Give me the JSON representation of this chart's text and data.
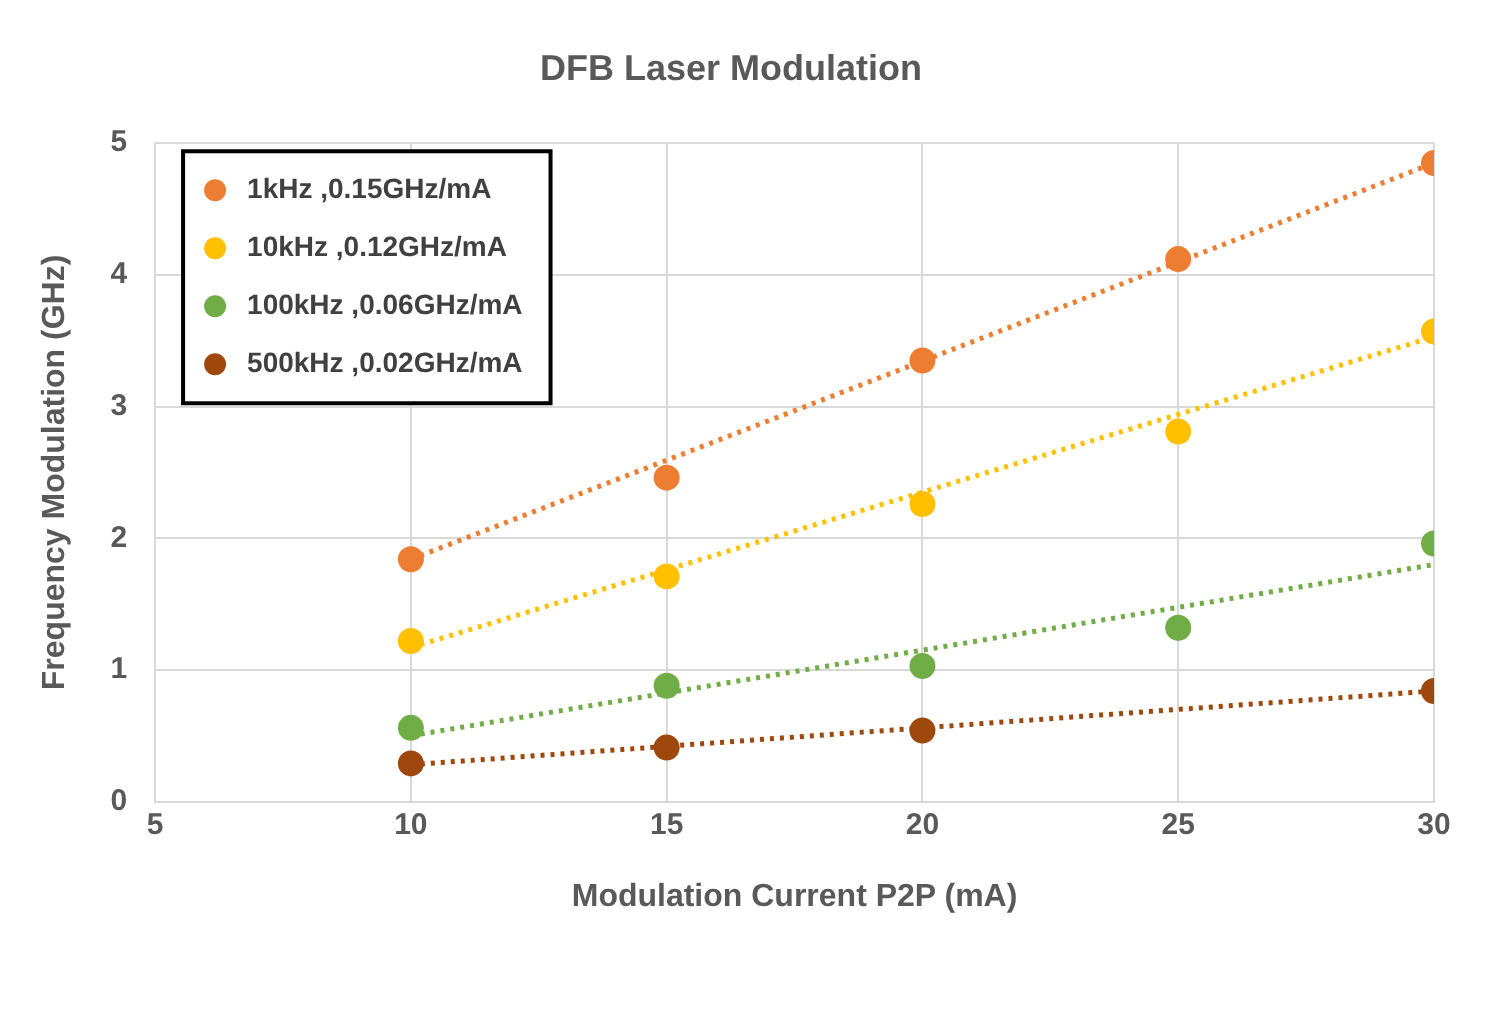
{
  "chart_data": {
    "type": "scatter",
    "title": "DFB Laser Modulation",
    "xlabel": "Modulation Current P2P (mA)",
    "ylabel": "Frequency Modulation (GHz)",
    "xlim": [
      5,
      30
    ],
    "xticks": [
      5,
      10,
      15,
      20,
      25,
      30
    ],
    "ylim": [
      0,
      5
    ],
    "yticks": [
      0,
      1,
      2,
      3,
      4,
      5
    ],
    "grid": true,
    "legend": "top left",
    "marker": "circle",
    "series": [
      {
        "name": "1kHz ,0.15GHz/mA",
        "color": "#ed7d31",
        "x": [
          10,
          15,
          20,
          25,
          30
        ],
        "values": [
          1.84,
          2.46,
          3.35,
          4.12,
          4.85
        ]
      },
      {
        "name": "10kHz ,0.12GHz/mA",
        "color": "#ffc000",
        "x": [
          10,
          15,
          20,
          25,
          30
        ],
        "values": [
          1.22,
          1.71,
          2.26,
          2.81,
          3.57
        ]
      },
      {
        "name": "100kHz ,0.06GHz/mA",
        "color": "#70ad47",
        "x": [
          10,
          15,
          20,
          25,
          30
        ],
        "values": [
          0.56,
          0.88,
          1.03,
          1.32,
          1.96
        ]
      },
      {
        "name": "500kHz ,0.02GHz/mA",
        "color": "#9e480e",
        "x": [
          10,
          15,
          20,
          30
        ],
        "values": [
          0.29,
          0.41,
          0.54,
          0.84
        ]
      },
      {
        "type": "line",
        "line_style": "dotted",
        "marker": "none",
        "color": "#ed7d31",
        "x": [
          10,
          30
        ],
        "values": [
          1.84,
          4.85
        ]
      },
      {
        "type": "line",
        "line_style": "dotted",
        "marker": "none",
        "color": "#ffc000",
        "x": [
          10,
          30
        ],
        "values": [
          1.17,
          3.53
        ]
      },
      {
        "type": "line",
        "line_style": "dotted",
        "marker": "none",
        "color": "#70ad47",
        "x": [
          10,
          30
        ],
        "values": [
          0.5,
          1.8
        ]
      },
      {
        "type": "line",
        "line_style": "dotted",
        "marker": "none",
        "color": "#9e480e",
        "x": [
          10,
          30
        ],
        "values": [
          0.28,
          0.84
        ]
      }
    ]
  }
}
